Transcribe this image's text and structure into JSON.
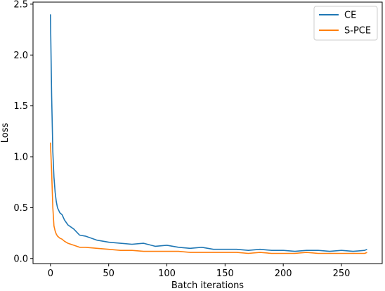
{
  "chart_data": {
    "type": "line",
    "title": "",
    "xlabel": "Batch iterations",
    "ylabel": "Loss",
    "xlim": [
      -15,
      285
    ],
    "ylim": [
      -0.05,
      2.52
    ],
    "xticks": [
      0,
      50,
      100,
      150,
      200,
      250
    ],
    "yticks": [
      0.0,
      0.5,
      1.0,
      1.5,
      2.0,
      2.5
    ],
    "xtick_labels": [
      "0",
      "50",
      "100",
      "150",
      "200",
      "250"
    ],
    "ytick_labels": [
      "0.0",
      "0.5",
      "1.0",
      "1.5",
      "2.0",
      "2.5"
    ],
    "grid": false,
    "legend_position": "top-right",
    "series": [
      {
        "name": "CE",
        "color": "#1f77b4",
        "x": [
          0,
          1,
          2,
          3,
          4,
          5,
          6,
          8,
          10,
          12,
          15,
          20,
          25,
          30,
          40,
          50,
          60,
          70,
          80,
          90,
          100,
          110,
          120,
          130,
          140,
          150,
          160,
          170,
          180,
          190,
          200,
          210,
          220,
          230,
          240,
          250,
          260,
          270,
          272
        ],
        "y": [
          2.4,
          1.6,
          1.05,
          0.8,
          0.65,
          0.56,
          0.5,
          0.45,
          0.43,
          0.38,
          0.33,
          0.29,
          0.23,
          0.22,
          0.18,
          0.16,
          0.15,
          0.14,
          0.15,
          0.12,
          0.13,
          0.11,
          0.1,
          0.11,
          0.09,
          0.09,
          0.09,
          0.08,
          0.09,
          0.08,
          0.08,
          0.07,
          0.08,
          0.08,
          0.07,
          0.08,
          0.07,
          0.08,
          0.09
        ]
      },
      {
        "name": "S-PCE",
        "color": "#ff7f0e",
        "x": [
          0,
          1,
          2,
          3,
          4,
          5,
          6,
          8,
          10,
          12,
          15,
          20,
          25,
          30,
          40,
          50,
          60,
          70,
          80,
          90,
          100,
          110,
          120,
          130,
          140,
          150,
          160,
          170,
          180,
          190,
          200,
          210,
          220,
          230,
          240,
          250,
          260,
          270,
          272
        ],
        "y": [
          1.14,
          0.85,
          0.5,
          0.32,
          0.27,
          0.24,
          0.22,
          0.2,
          0.19,
          0.17,
          0.15,
          0.13,
          0.11,
          0.11,
          0.1,
          0.09,
          0.08,
          0.08,
          0.07,
          0.07,
          0.07,
          0.07,
          0.06,
          0.06,
          0.06,
          0.06,
          0.06,
          0.05,
          0.06,
          0.05,
          0.05,
          0.05,
          0.06,
          0.05,
          0.05,
          0.05,
          0.05,
          0.05,
          0.06
        ]
      }
    ]
  }
}
